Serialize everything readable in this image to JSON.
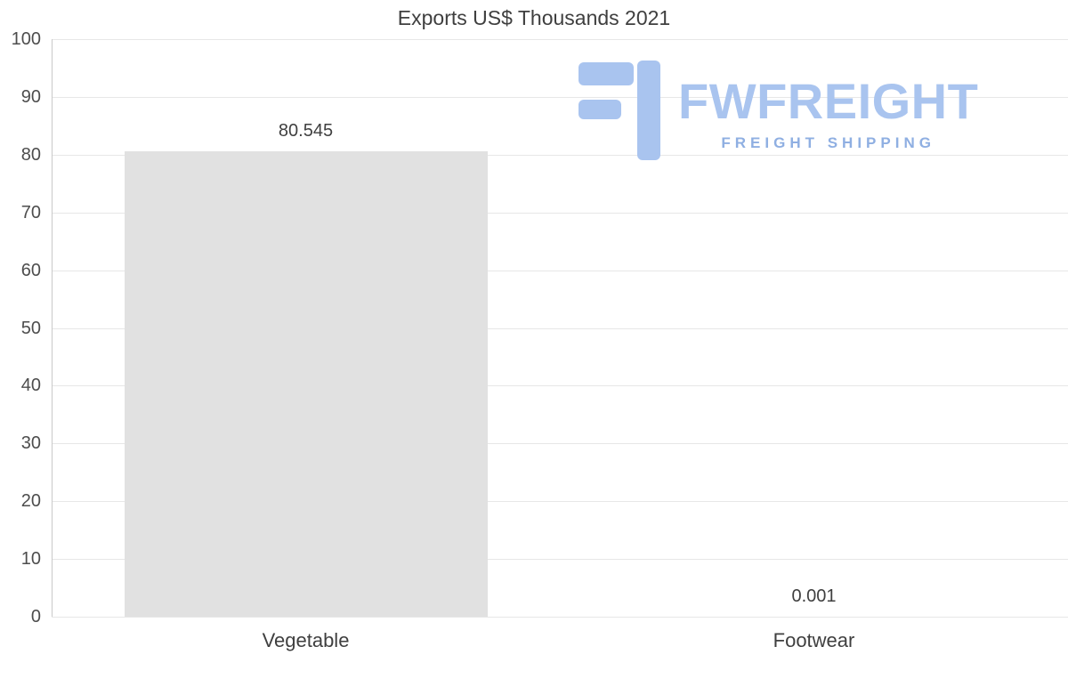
{
  "chart": {
    "title": "Exports US$ Thousands 2021",
    "watermark": {
      "name": "FWFREIGHT",
      "tagline": "FREIGHT SHIPPING"
    }
  },
  "chart_data": {
    "type": "bar",
    "title": "Exports US$ Thousands 2021",
    "categories": [
      "Vegetable",
      "Footwear"
    ],
    "values": [
      80.545,
      0.001
    ],
    "value_labels": [
      "80.545",
      "0.001"
    ],
    "xlabel": "",
    "ylabel": "",
    "ylim": [
      0,
      100
    ],
    "yticks": [
      0,
      10,
      20,
      30,
      40,
      50,
      60,
      70,
      80,
      90,
      100
    ],
    "grid": true,
    "legend": false,
    "colors": {
      "bar_fill": "#e1e1e1",
      "grid_line": "#e7e7e7",
      "axis_line": "#c9c9c9",
      "text": "#3f3f3f",
      "tick_text": "#4d4d4d",
      "logo_primary": "#a9c4ef",
      "logo_secondary": "#8fafe2"
    }
  }
}
